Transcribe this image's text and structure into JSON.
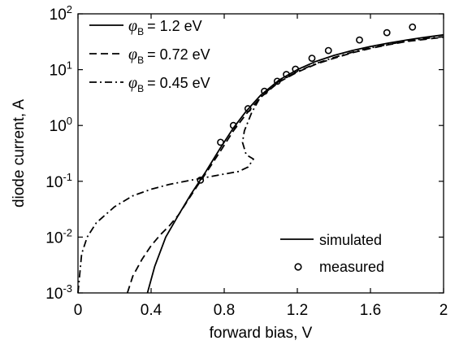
{
  "chart_data": {
    "type": "line",
    "title": "",
    "xlabel": "forward bias, V",
    "ylabel": "diode current, A",
    "xlim": [
      0,
      2
    ],
    "ylim": [
      0.001,
      100
    ],
    "yscale": "log",
    "grid": false,
    "x_ticks": [
      {
        "value": 0,
        "label": "0"
      },
      {
        "value": 0.4,
        "label": "0.4"
      },
      {
        "value": 0.8,
        "label": "0.8"
      },
      {
        "value": 1.2,
        "label": "1.2"
      },
      {
        "value": 1.6,
        "label": "1.6"
      },
      {
        "value": 2.0,
        "label": "2"
      }
    ],
    "y_ticks": [
      {
        "value": 0.001,
        "base": "10",
        "exp": "-3"
      },
      {
        "value": 0.01,
        "base": "10",
        "exp": "-2"
      },
      {
        "value": 0.1,
        "base": "10",
        "exp": "-1"
      },
      {
        "value": 1,
        "base": "10",
        "exp": "0"
      },
      {
        "value": 10,
        "base": "10",
        "exp": "1"
      },
      {
        "value": 100,
        "base": "10",
        "exp": "2"
      }
    ],
    "series": [
      {
        "phi_symbol": "φ",
        "phi_sub": "B",
        "name": "= 1.2 eV",
        "style": "solid",
        "x": [
          0.38,
          0.42,
          0.48,
          0.55,
          0.62,
          0.7,
          0.78,
          0.85,
          0.92,
          1.0,
          1.1,
          1.2,
          1.3,
          1.4,
          1.5,
          1.6,
          1.7,
          1.8,
          1.9,
          2.0
        ],
        "y": [
          0.001,
          0.003,
          0.01,
          0.025,
          0.06,
          0.15,
          0.4,
          0.9,
          1.8,
          3.5,
          6.5,
          10,
          14,
          18,
          22,
          26,
          30,
          34,
          38,
          42
        ]
      },
      {
        "phi_symbol": "φ",
        "phi_sub": "B",
        "name": "= 0.72 eV",
        "style": "dashed",
        "x": [
          0.27,
          0.3,
          0.35,
          0.4,
          0.45,
          0.5,
          0.55,
          0.6,
          0.65,
          0.7,
          0.78,
          0.85,
          0.92,
          1.0,
          1.1,
          1.2,
          1.3,
          1.4,
          1.5,
          1.6,
          1.7,
          1.8,
          1.9,
          2.0
        ],
        "y": [
          0.001,
          0.002,
          0.004,
          0.007,
          0.011,
          0.016,
          0.025,
          0.045,
          0.08,
          0.14,
          0.35,
          0.8,
          1.6,
          3.2,
          6,
          9,
          12.5,
          16,
          20,
          24,
          28,
          32,
          35,
          38
        ]
      },
      {
        "phi_symbol": "φ",
        "phi_sub": "B",
        "name": "= 0.45 eV",
        "style": "dashdot",
        "x": [
          0.0,
          0.02,
          0.05,
          0.1,
          0.2,
          0.3,
          0.4,
          0.5,
          0.6,
          0.7,
          0.8,
          0.88,
          0.93,
          0.96,
          0.92,
          0.9,
          0.91,
          0.95,
          1.0,
          1.1,
          1.2,
          1.3,
          1.4,
          1.5,
          1.6,
          1.7,
          1.8,
          1.9,
          2.0
        ],
        "y": [
          0.001,
          0.005,
          0.01,
          0.018,
          0.035,
          0.055,
          0.072,
          0.088,
          0.102,
          0.117,
          0.135,
          0.15,
          0.18,
          0.25,
          0.3,
          0.5,
          0.8,
          1.7,
          3.3,
          6.2,
          9.2,
          12.8,
          16.5,
          20.5,
          24.5,
          28.5,
          32.5,
          36,
          39
        ]
      }
    ],
    "measured": {
      "name": "measured",
      "marker": "circle",
      "x": [
        0.67,
        0.78,
        0.85,
        0.93,
        1.02,
        1.09,
        1.14,
        1.19,
        1.28,
        1.37,
        1.54,
        1.69,
        1.83
      ],
      "y": [
        0.105,
        0.5,
        1.0,
        2.0,
        4.1,
        6.2,
        8.2,
        10.2,
        16,
        22,
        34,
        46,
        58
      ]
    },
    "legend_style": {
      "simulated_label": "simulated",
      "measured_label": "measured"
    }
  }
}
